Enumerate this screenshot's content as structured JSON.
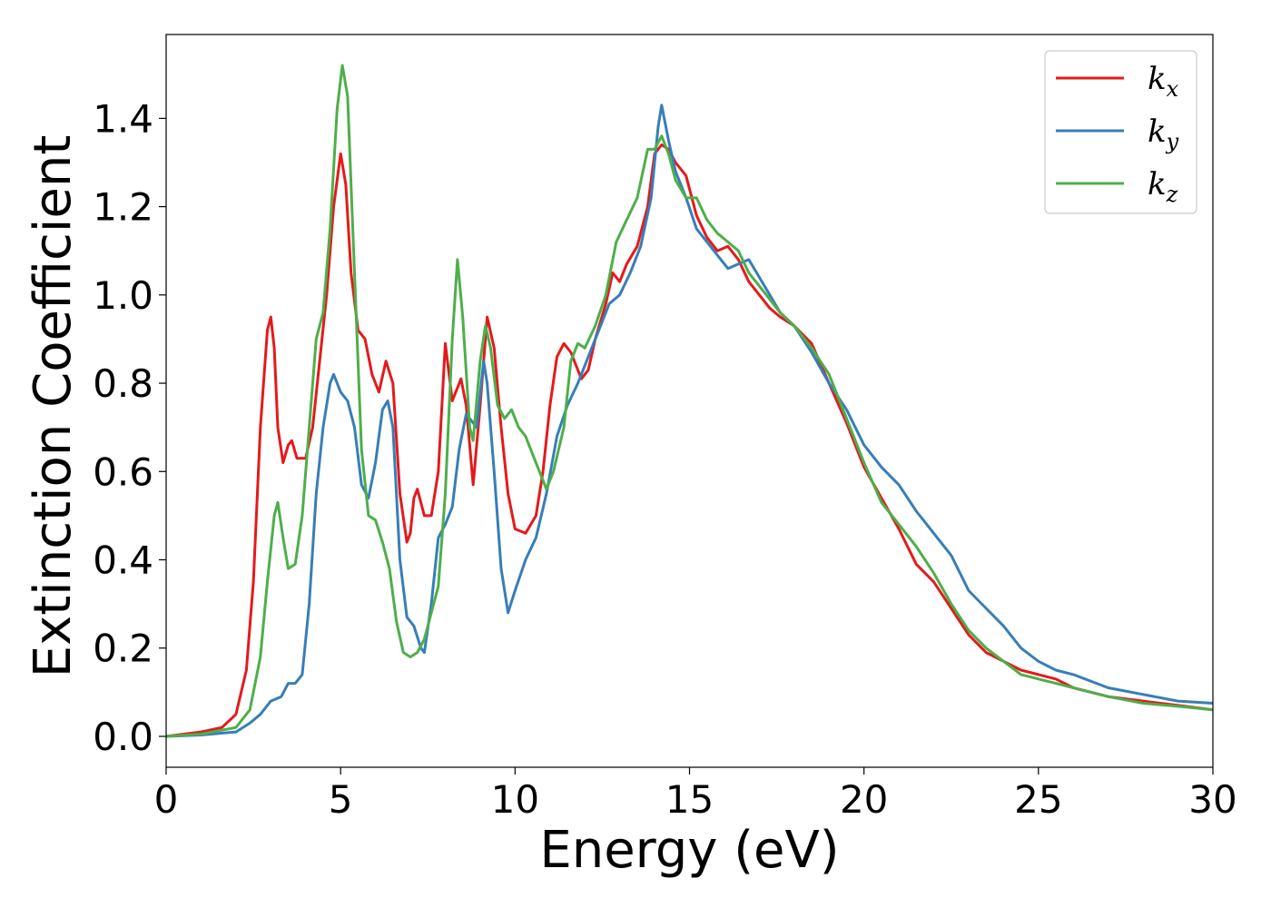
{
  "chart_data": {
    "type": "line",
    "title": "",
    "xlabel": "Energy (eV)",
    "ylabel": "Extinction Coefficient",
    "xlim": [
      0,
      30
    ],
    "ylim": [
      -0.07,
      1.59
    ],
    "xticks": [
      0,
      5,
      10,
      15,
      20,
      25,
      30
    ],
    "xtick_labels": [
      "0",
      "5",
      "10",
      "15",
      "20",
      "25",
      "30"
    ],
    "yticks": [
      0.0,
      0.2,
      0.4,
      0.6,
      0.8,
      1.0,
      1.2,
      1.4
    ],
    "ytick_labels": [
      "0.0",
      "0.2",
      "0.4",
      "0.6",
      "0.8",
      "1.0",
      "1.2",
      "1.4"
    ],
    "grid": false,
    "legend_position": "top-right",
    "series": [
      {
        "name": "k",
        "subscript": "x",
        "color": "#e41a1c",
        "points": [
          [
            0,
            0.0
          ],
          [
            1,
            0.01
          ],
          [
            1.6,
            0.02
          ],
          [
            2.0,
            0.05
          ],
          [
            2.3,
            0.15
          ],
          [
            2.5,
            0.35
          ],
          [
            2.7,
            0.7
          ],
          [
            2.9,
            0.92
          ],
          [
            3.0,
            0.95
          ],
          [
            3.1,
            0.88
          ],
          [
            3.2,
            0.7
          ],
          [
            3.35,
            0.62
          ],
          [
            3.5,
            0.66
          ],
          [
            3.6,
            0.67
          ],
          [
            3.75,
            0.63
          ],
          [
            4.0,
            0.63
          ],
          [
            4.2,
            0.7
          ],
          [
            4.4,
            0.85
          ],
          [
            4.6,
            1.0
          ],
          [
            4.8,
            1.2
          ],
          [
            5.0,
            1.32
          ],
          [
            5.15,
            1.25
          ],
          [
            5.3,
            1.05
          ],
          [
            5.5,
            0.92
          ],
          [
            5.7,
            0.9
          ],
          [
            5.9,
            0.82
          ],
          [
            6.1,
            0.78
          ],
          [
            6.3,
            0.85
          ],
          [
            6.5,
            0.8
          ],
          [
            6.7,
            0.55
          ],
          [
            6.9,
            0.44
          ],
          [
            7.0,
            0.46
          ],
          [
            7.1,
            0.54
          ],
          [
            7.2,
            0.56
          ],
          [
            7.4,
            0.5
          ],
          [
            7.6,
            0.5
          ],
          [
            7.8,
            0.6
          ],
          [
            8.0,
            0.89
          ],
          [
            8.2,
            0.76
          ],
          [
            8.45,
            0.81
          ],
          [
            8.6,
            0.75
          ],
          [
            8.8,
            0.57
          ],
          [
            9.0,
            0.75
          ],
          [
            9.2,
            0.95
          ],
          [
            9.4,
            0.88
          ],
          [
            9.6,
            0.7
          ],
          [
            9.8,
            0.55
          ],
          [
            10.0,
            0.47
          ],
          [
            10.3,
            0.46
          ],
          [
            10.6,
            0.5
          ],
          [
            10.8,
            0.6
          ],
          [
            11.0,
            0.75
          ],
          [
            11.2,
            0.86
          ],
          [
            11.4,
            0.89
          ],
          [
            11.6,
            0.87
          ],
          [
            11.8,
            0.83
          ],
          [
            11.9,
            0.81
          ],
          [
            12.1,
            0.83
          ],
          [
            12.3,
            0.9
          ],
          [
            12.6,
            0.98
          ],
          [
            12.8,
            1.05
          ],
          [
            13.0,
            1.03
          ],
          [
            13.2,
            1.07
          ],
          [
            13.5,
            1.11
          ],
          [
            13.8,
            1.2
          ],
          [
            14.0,
            1.32
          ],
          [
            14.2,
            1.34
          ],
          [
            14.4,
            1.33
          ],
          [
            14.6,
            1.3
          ],
          [
            14.9,
            1.27
          ],
          [
            15.2,
            1.18
          ],
          [
            15.5,
            1.13
          ],
          [
            15.8,
            1.1
          ],
          [
            16.1,
            1.11
          ],
          [
            16.4,
            1.08
          ],
          [
            16.7,
            1.03
          ],
          [
            17.0,
            1.0
          ],
          [
            17.3,
            0.97
          ],
          [
            17.6,
            0.95
          ],
          [
            18.0,
            0.93
          ],
          [
            18.5,
            0.89
          ],
          [
            19.0,
            0.8
          ],
          [
            19.5,
            0.71
          ],
          [
            20.0,
            0.61
          ],
          [
            20.5,
            0.54
          ],
          [
            21.0,
            0.47
          ],
          [
            21.5,
            0.39
          ],
          [
            22.0,
            0.35
          ],
          [
            22.5,
            0.29
          ],
          [
            23.0,
            0.23
          ],
          [
            23.5,
            0.19
          ],
          [
            24.0,
            0.17
          ],
          [
            24.5,
            0.15
          ],
          [
            25.0,
            0.14
          ],
          [
            25.5,
            0.13
          ],
          [
            26.0,
            0.11
          ],
          [
            27.0,
            0.09
          ],
          [
            28.0,
            0.08
          ],
          [
            29.0,
            0.07
          ],
          [
            30.0,
            0.06
          ]
        ]
      },
      {
        "name": "k",
        "subscript": "y",
        "color": "#377eb8",
        "points": [
          [
            0,
            0.0
          ],
          [
            1,
            0.003
          ],
          [
            2,
            0.01
          ],
          [
            2.4,
            0.03
          ],
          [
            2.7,
            0.05
          ],
          [
            3.0,
            0.08
          ],
          [
            3.3,
            0.09
          ],
          [
            3.5,
            0.12
          ],
          [
            3.7,
            0.12
          ],
          [
            3.9,
            0.14
          ],
          [
            4.1,
            0.3
          ],
          [
            4.3,
            0.55
          ],
          [
            4.5,
            0.7
          ],
          [
            4.7,
            0.8
          ],
          [
            4.8,
            0.82
          ],
          [
            5.0,
            0.78
          ],
          [
            5.2,
            0.76
          ],
          [
            5.4,
            0.7
          ],
          [
            5.6,
            0.57
          ],
          [
            5.8,
            0.54
          ],
          [
            6.0,
            0.62
          ],
          [
            6.2,
            0.74
          ],
          [
            6.35,
            0.76
          ],
          [
            6.5,
            0.7
          ],
          [
            6.7,
            0.4
          ],
          [
            6.9,
            0.27
          ],
          [
            7.1,
            0.25
          ],
          [
            7.3,
            0.2
          ],
          [
            7.4,
            0.19
          ],
          [
            7.6,
            0.3
          ],
          [
            7.8,
            0.45
          ],
          [
            8.0,
            0.48
          ],
          [
            8.2,
            0.52
          ],
          [
            8.4,
            0.65
          ],
          [
            8.6,
            0.73
          ],
          [
            8.7,
            0.72
          ],
          [
            8.9,
            0.7
          ],
          [
            9.1,
            0.85
          ],
          [
            9.2,
            0.8
          ],
          [
            9.4,
            0.6
          ],
          [
            9.6,
            0.38
          ],
          [
            9.8,
            0.28
          ],
          [
            10.0,
            0.33
          ],
          [
            10.3,
            0.4
          ],
          [
            10.6,
            0.45
          ],
          [
            10.9,
            0.55
          ],
          [
            11.2,
            0.68
          ],
          [
            11.5,
            0.75
          ],
          [
            11.8,
            0.8
          ],
          [
            12.1,
            0.86
          ],
          [
            12.4,
            0.92
          ],
          [
            12.7,
            0.98
          ],
          [
            13.0,
            1.0
          ],
          [
            13.3,
            1.05
          ],
          [
            13.6,
            1.11
          ],
          [
            13.9,
            1.22
          ],
          [
            14.1,
            1.38
          ],
          [
            14.2,
            1.43
          ],
          [
            14.4,
            1.35
          ],
          [
            14.6,
            1.28
          ],
          [
            14.9,
            1.22
          ],
          [
            15.2,
            1.15
          ],
          [
            15.5,
            1.12
          ],
          [
            15.8,
            1.09
          ],
          [
            16.1,
            1.06
          ],
          [
            16.4,
            1.07
          ],
          [
            16.7,
            1.08
          ],
          [
            17.0,
            1.04
          ],
          [
            17.3,
            1.0
          ],
          [
            17.6,
            0.96
          ],
          [
            18.0,
            0.93
          ],
          [
            18.5,
            0.87
          ],
          [
            19.0,
            0.8
          ],
          [
            19.5,
            0.74
          ],
          [
            20.0,
            0.66
          ],
          [
            20.5,
            0.61
          ],
          [
            21.0,
            0.57
          ],
          [
            21.5,
            0.51
          ],
          [
            22.0,
            0.46
          ],
          [
            22.5,
            0.41
          ],
          [
            23.0,
            0.33
          ],
          [
            23.5,
            0.29
          ],
          [
            24.0,
            0.25
          ],
          [
            24.5,
            0.2
          ],
          [
            25.0,
            0.17
          ],
          [
            25.5,
            0.15
          ],
          [
            26.0,
            0.14
          ],
          [
            27.0,
            0.11
          ],
          [
            28.0,
            0.095
          ],
          [
            29.0,
            0.08
          ],
          [
            30.0,
            0.075
          ]
        ]
      },
      {
        "name": "k",
        "subscript": "z",
        "color": "#4daf4a",
        "points": [
          [
            0,
            0.0
          ],
          [
            1,
            0.005
          ],
          [
            2,
            0.02
          ],
          [
            2.4,
            0.06
          ],
          [
            2.7,
            0.18
          ],
          [
            2.9,
            0.35
          ],
          [
            3.1,
            0.5
          ],
          [
            3.2,
            0.53
          ],
          [
            3.35,
            0.45
          ],
          [
            3.5,
            0.38
          ],
          [
            3.7,
            0.39
          ],
          [
            3.9,
            0.5
          ],
          [
            4.1,
            0.7
          ],
          [
            4.3,
            0.9
          ],
          [
            4.5,
            0.96
          ],
          [
            4.7,
            1.15
          ],
          [
            4.9,
            1.42
          ],
          [
            5.05,
            1.52
          ],
          [
            5.2,
            1.45
          ],
          [
            5.4,
            1.05
          ],
          [
            5.6,
            0.65
          ],
          [
            5.8,
            0.5
          ],
          [
            6.0,
            0.49
          ],
          [
            6.2,
            0.44
          ],
          [
            6.4,
            0.38
          ],
          [
            6.6,
            0.26
          ],
          [
            6.8,
            0.19
          ],
          [
            7.0,
            0.18
          ],
          [
            7.2,
            0.19
          ],
          [
            7.4,
            0.22
          ],
          [
            7.6,
            0.28
          ],
          [
            7.8,
            0.34
          ],
          [
            8.0,
            0.55
          ],
          [
            8.2,
            0.9
          ],
          [
            8.35,
            1.08
          ],
          [
            8.5,
            0.95
          ],
          [
            8.7,
            0.7
          ],
          [
            8.8,
            0.67
          ],
          [
            9.0,
            0.85
          ],
          [
            9.15,
            0.93
          ],
          [
            9.3,
            0.88
          ],
          [
            9.5,
            0.75
          ],
          [
            9.7,
            0.72
          ],
          [
            9.9,
            0.74
          ],
          [
            10.1,
            0.7
          ],
          [
            10.3,
            0.68
          ],
          [
            10.5,
            0.64
          ],
          [
            10.7,
            0.6
          ],
          [
            10.9,
            0.56
          ],
          [
            11.1,
            0.6
          ],
          [
            11.4,
            0.7
          ],
          [
            11.6,
            0.85
          ],
          [
            11.8,
            0.89
          ],
          [
            12.0,
            0.88
          ],
          [
            12.3,
            0.93
          ],
          [
            12.6,
            1.0
          ],
          [
            12.9,
            1.12
          ],
          [
            13.2,
            1.17
          ],
          [
            13.5,
            1.22
          ],
          [
            13.8,
            1.33
          ],
          [
            14.0,
            1.33
          ],
          [
            14.2,
            1.36
          ],
          [
            14.4,
            1.32
          ],
          [
            14.6,
            1.26
          ],
          [
            14.9,
            1.22
          ],
          [
            15.2,
            1.22
          ],
          [
            15.5,
            1.17
          ],
          [
            15.8,
            1.14
          ],
          [
            16.1,
            1.12
          ],
          [
            16.4,
            1.1
          ],
          [
            16.7,
            1.05
          ],
          [
            17.0,
            1.02
          ],
          [
            17.3,
            0.99
          ],
          [
            17.6,
            0.96
          ],
          [
            18.0,
            0.93
          ],
          [
            18.5,
            0.88
          ],
          [
            19.0,
            0.82
          ],
          [
            19.5,
            0.72
          ],
          [
            20.0,
            0.62
          ],
          [
            20.5,
            0.53
          ],
          [
            21.0,
            0.48
          ],
          [
            21.5,
            0.43
          ],
          [
            22.0,
            0.37
          ],
          [
            22.5,
            0.3
          ],
          [
            23.0,
            0.24
          ],
          [
            23.5,
            0.2
          ],
          [
            24.0,
            0.17
          ],
          [
            24.5,
            0.14
          ],
          [
            25.0,
            0.13
          ],
          [
            25.5,
            0.12
          ],
          [
            26.0,
            0.11
          ],
          [
            27.0,
            0.09
          ],
          [
            28.0,
            0.075
          ],
          [
            29.0,
            0.068
          ],
          [
            30.0,
            0.06
          ]
        ]
      }
    ]
  }
}
